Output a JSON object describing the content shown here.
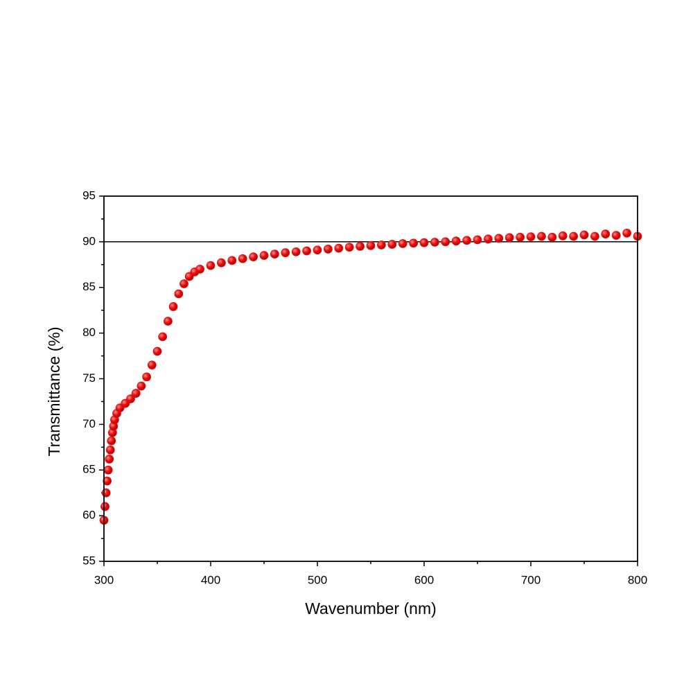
{
  "chart_data": {
    "type": "scatter",
    "x_label": "Wavenumber (nm)",
    "y_label": "Transmittance (%)",
    "x": [
      300,
      301,
      302,
      303,
      304,
      305,
      306,
      307,
      308,
      309,
      310,
      312,
      315,
      320,
      325,
      330,
      335,
      340,
      345,
      350,
      355,
      360,
      365,
      370,
      375,
      380,
      385,
      390,
      400,
      410,
      420,
      430,
      440,
      450,
      460,
      470,
      480,
      490,
      500,
      510,
      520,
      530,
      540,
      550,
      560,
      570,
      580,
      590,
      600,
      610,
      620,
      630,
      640,
      650,
      660,
      670,
      680,
      690,
      700,
      710,
      720,
      730,
      740,
      750,
      760,
      770,
      780,
      790,
      800
    ],
    "series": [
      {
        "color": "#e41010",
        "values": [
          59.5,
          61,
          62.5,
          63.8,
          65,
          66.2,
          67.2,
          68.2,
          69.1,
          69.8,
          70.5,
          71.2,
          71.8,
          72.3,
          72.8,
          73.4,
          74.2,
          75.2,
          76.5,
          78,
          79.6,
          81.3,
          82.9,
          84.3,
          85.4,
          86.2,
          86.7,
          87,
          87.4,
          87.7,
          87.95,
          88.15,
          88.35,
          88.5,
          88.65,
          88.8,
          88.9,
          89.0,
          89.1,
          89.2,
          89.3,
          89.4,
          89.5,
          89.58,
          89.65,
          89.72,
          89.8,
          89.85,
          89.9,
          89.95,
          90.0,
          90.08,
          90.15,
          90.22,
          90.3,
          90.38,
          90.45,
          90.5,
          90.55,
          90.6,
          90.5,
          90.65,
          90.6,
          90.75,
          90.6,
          90.85,
          90.7,
          90.95,
          90.6
        ]
      }
    ],
    "xlim": [
      300,
      800
    ],
    "xticks": [
      300,
      400,
      500,
      600,
      700,
      800
    ],
    "xminorticks": [
      350,
      450,
      550,
      650,
      750
    ],
    "ylim": [
      55,
      95
    ],
    "yticks": [
      55,
      60,
      65,
      70,
      75,
      80,
      85,
      90,
      95
    ],
    "yminorticks": [
      57.5,
      62.5,
      67.5,
      72.5,
      77.5,
      82.5,
      87.5,
      92.5
    ],
    "hline": 90
  }
}
